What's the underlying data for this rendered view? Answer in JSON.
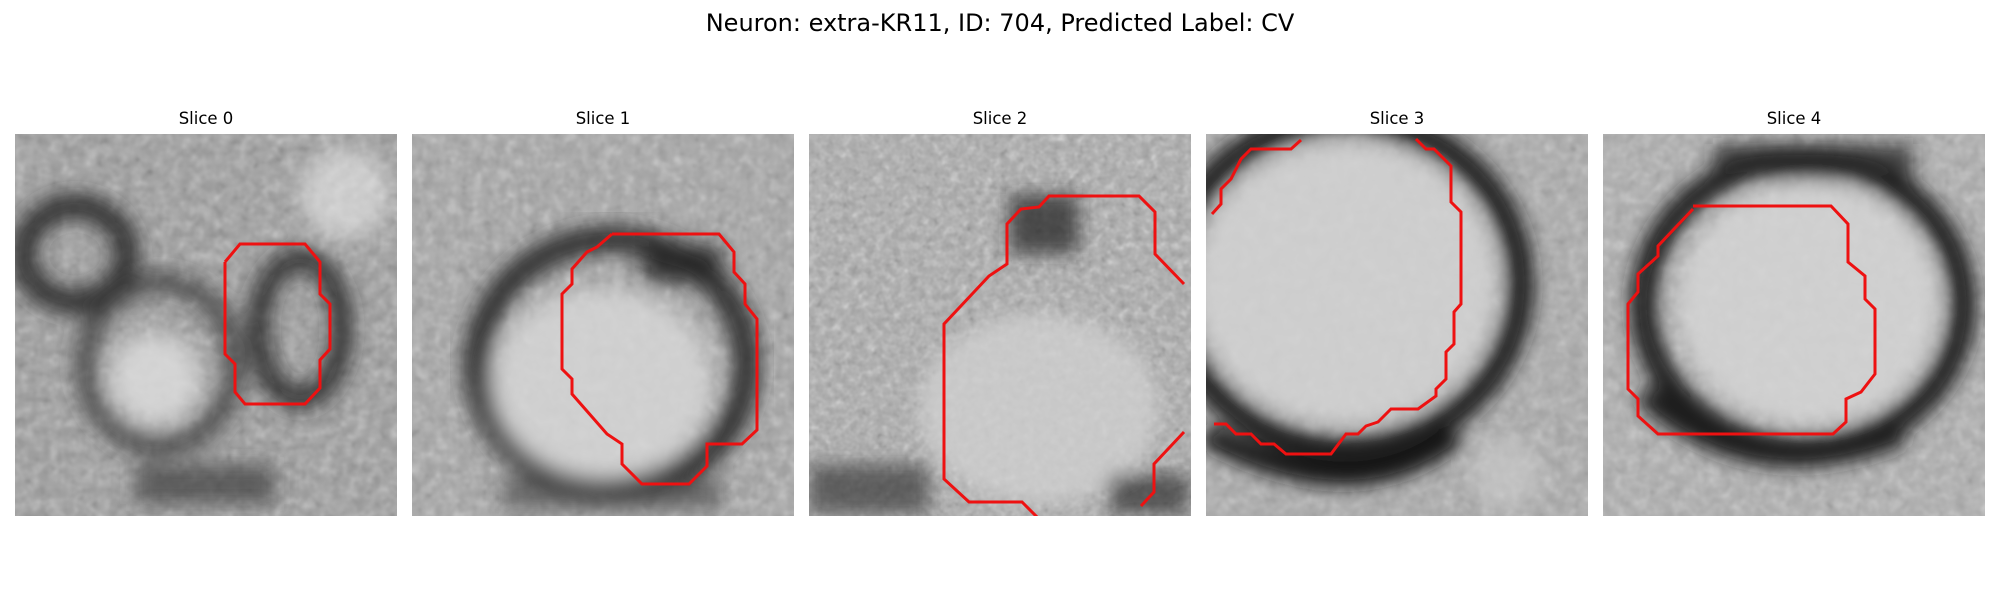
{
  "figure": {
    "title": "Neuron: extra-KR11, ID: 704, Predicted Label: CV"
  },
  "panels": [
    {
      "title": "Slice 0"
    },
    {
      "title": "Slice 1"
    },
    {
      "title": "Slice 2"
    },
    {
      "title": "Slice 3"
    },
    {
      "title": "Slice 4"
    }
  ],
  "colors": {
    "contour": "#ee1111",
    "image_colormap": "grayscale"
  }
}
